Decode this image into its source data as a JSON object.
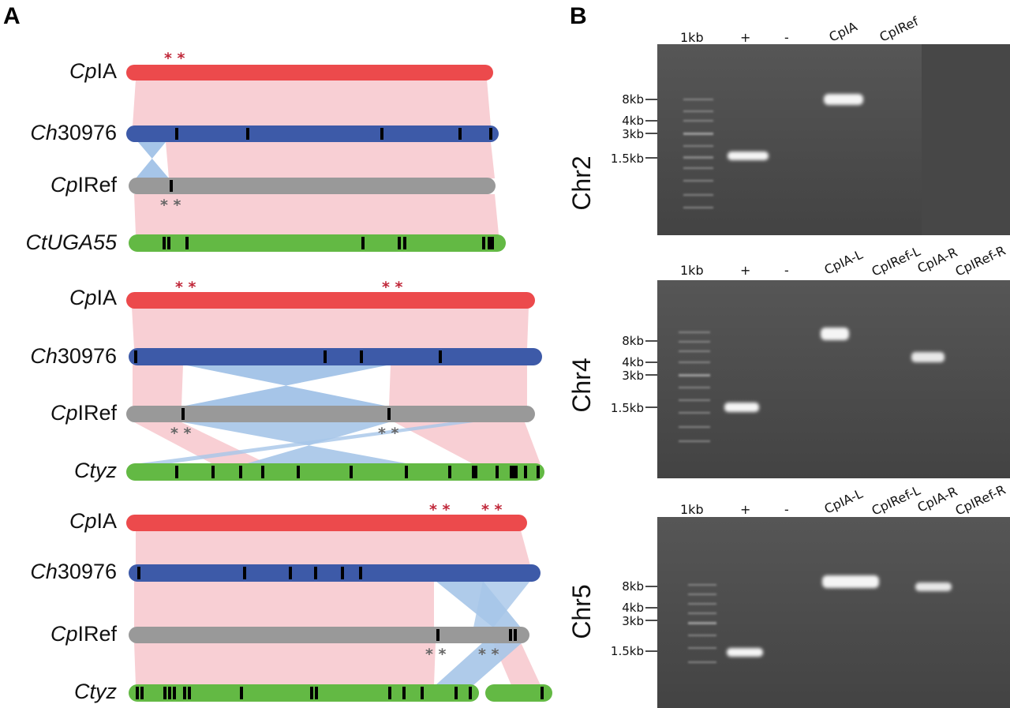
{
  "figure": {
    "panels": {
      "a": "A",
      "b": "B"
    },
    "colors": {
      "CpIA": "#ec4a4c",
      "Ch30976": "#3d5aa8",
      "CpIRef": "#999999",
      "Ct": "#63b944",
      "synteny_pink": "#f8cfd4",
      "inversion_blue": "#a6c5e8",
      "marker": "#000000",
      "star_red": "#c0283a",
      "star_grey": "#666666",
      "gel_bg": "#4b4b4b"
    },
    "stars": {
      "double": "* *"
    },
    "panel_a": {
      "groups": [
        {
          "tracks": [
            {
              "label_italic": "Cp",
              "label_rest": "IA"
            },
            {
              "label_italic": "Ch",
              "label_rest": "30976"
            },
            {
              "label_italic": "Cp",
              "label_rest": "IRef"
            },
            {
              "label_italic": "CtUGA55",
              "label_rest": ""
            }
          ]
        },
        {
          "tracks": [
            {
              "label_italic": "Cp",
              "label_rest": "IA"
            },
            {
              "label_italic": "Ch",
              "label_rest": "30976"
            },
            {
              "label_italic": "Cp",
              "label_rest": "IRef"
            },
            {
              "label_italic": "Ctyz",
              "label_rest": ""
            }
          ]
        },
        {
          "tracks": [
            {
              "label_italic": "Cp",
              "label_rest": "IA"
            },
            {
              "label_italic": "Ch",
              "label_rest": "30976"
            },
            {
              "label_italic": "Cp",
              "label_rest": "IRef"
            },
            {
              "label_italic": "Ctyz",
              "label_rest": ""
            }
          ]
        }
      ]
    },
    "panel_b": {
      "gels": [
        {
          "chromosome": "Chr2",
          "lanes": [
            "1kb",
            "+",
            "-",
            "CpIA",
            "CpIRef"
          ],
          "size_markers": [
            "8kb",
            "4kb",
            "3kb",
            "1.5kb"
          ]
        },
        {
          "chromosome": "Chr4",
          "lanes": [
            "1kb",
            "+",
            "-",
            "CpIA-L",
            "CpIRef-L",
            "CpIA-R",
            "CpIRef-R"
          ],
          "size_markers": [
            "8kb",
            "4kb",
            "3kb",
            "1.5kb"
          ]
        },
        {
          "chromosome": "Chr5",
          "lanes": [
            "1kb",
            "+",
            "-",
            "CpIA-L",
            "CpIRef-L",
            "CpIA-R",
            "CpIRef-R"
          ],
          "size_markers": [
            "8kb",
            "4kb",
            "3kb",
            "1.5kb"
          ]
        }
      ]
    }
  }
}
